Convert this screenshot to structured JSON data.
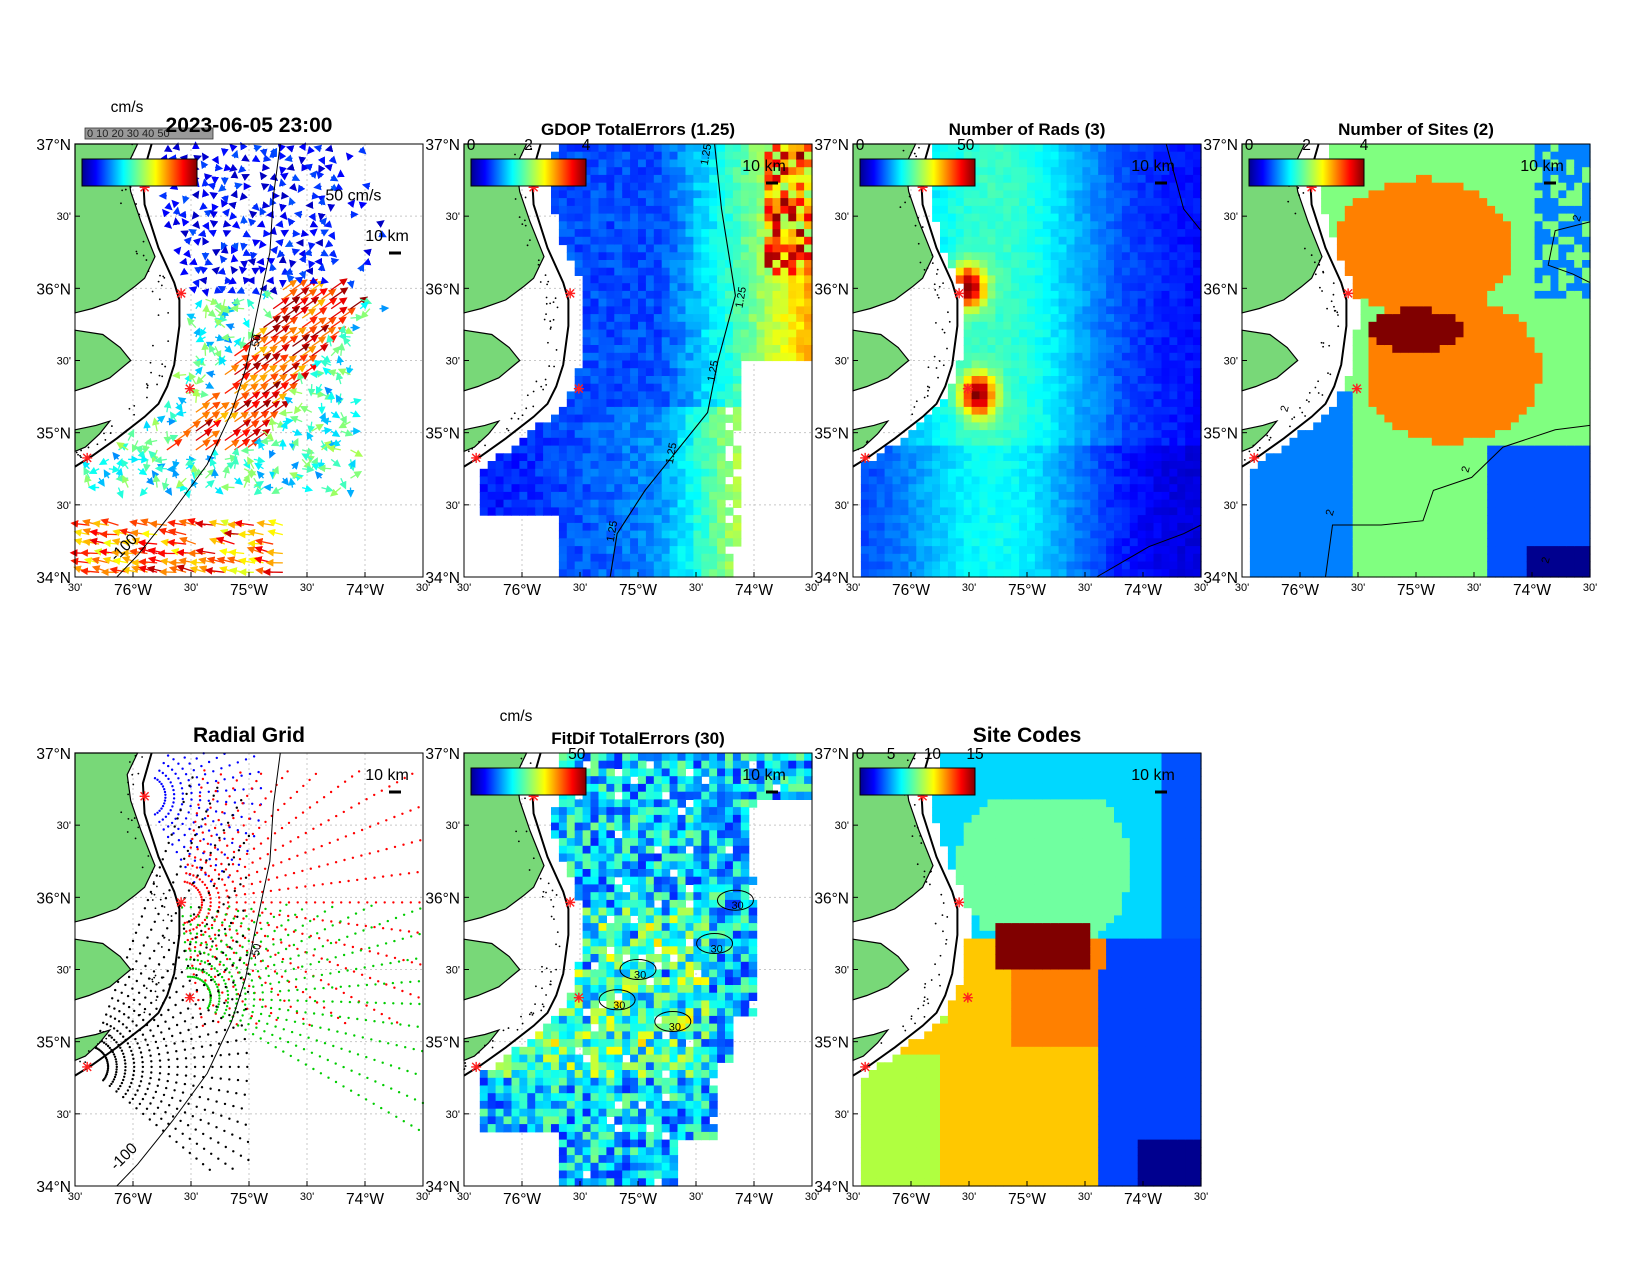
{
  "map": {
    "lat_ticks": [
      "37°N",
      "30'",
      "36°N",
      "30'",
      "35°N",
      "30'",
      "34°N"
    ],
    "lon_ticks": [
      "30'",
      "76°W",
      "30'",
      "75°W",
      "30'",
      "74°W",
      "30'"
    ],
    "scale_bar_label": "10 km",
    "contour_labels": [
      "-100",
      "-50"
    ]
  },
  "panels": [
    {
      "id": "total-vectors",
      "title": "2023-06-05 23:00",
      "colorbar_unit": "cm/s",
      "colorbar_ticks": [],
      "overprint": "0 10 20 30 40 50",
      "vector_scale_label": "50 cm/s",
      "contour_labels": [
        "-100",
        "-50"
      ]
    },
    {
      "id": "gdop-total-errors",
      "title": "GDOP TotalErrors (1.25)",
      "colorbar_unit": "",
      "colorbar_ticks": [
        "0",
        "2",
        "4"
      ],
      "contour_labels": [
        "1.25",
        "1.25",
        "1.25",
        "1.25",
        "1.25"
      ]
    },
    {
      "id": "number-of-rads",
      "title": "Number of Rads (3)",
      "colorbar_unit": "",
      "colorbar_ticks": [
        "0",
        "50"
      ],
      "contour_labels": []
    },
    {
      "id": "number-of-sites",
      "title": "Number of Sites (2)",
      "colorbar_unit": "",
      "colorbar_ticks": [
        "0",
        "2",
        "4"
      ],
      "contour_labels": [
        "2",
        "2",
        "2",
        "2",
        "2",
        "2"
      ]
    },
    {
      "id": "radial-grid",
      "title": "Radial Grid",
      "colorbar_unit": "",
      "colorbar_ticks": [],
      "contour_labels": [
        "-100",
        "-50"
      ]
    },
    {
      "id": "fitdif-total-errors",
      "title": "FitDif TotalErrors (30)",
      "colorbar_unit": "cm/s",
      "colorbar_ticks": [
        "50"
      ],
      "contour_labels": [
        "30",
        "30",
        "30",
        "30",
        "30"
      ]
    },
    {
      "id": "site-codes",
      "title": "Site Codes",
      "colorbar_unit": "",
      "colorbar_ticks": [
        "0",
        "5",
        "10",
        "15"
      ],
      "contour_labels": []
    }
  ],
  "colors": {
    "land": "#78d878",
    "coast": "#000000",
    "site_marker": "#ff2020",
    "jet": [
      "#00008f",
      "#0000ff",
      "#0080ff",
      "#00ffff",
      "#80ff80",
      "#ffff00",
      "#ff8000",
      "#ff0000",
      "#800000"
    ]
  }
}
